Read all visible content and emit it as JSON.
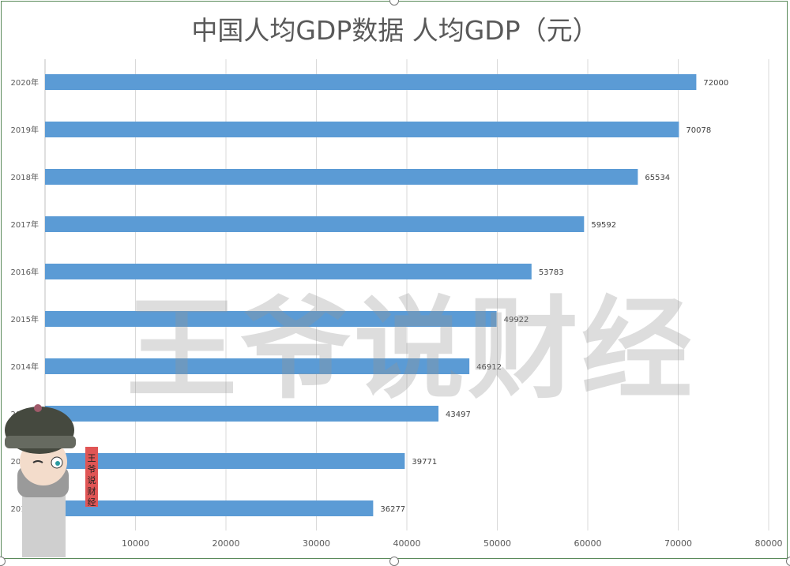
{
  "chart_data": {
    "type": "bar",
    "orientation": "horizontal",
    "title": "中国人均GDP数据 人均GDP（元）",
    "categories": [
      "2020年",
      "2019年",
      "2018年",
      "2017年",
      "2016年",
      "2015年",
      "2014年",
      "2013年",
      "2012年",
      "2011年"
    ],
    "values": [
      72000,
      70078,
      65534,
      59592,
      53783,
      49922,
      46912,
      43497,
      39771,
      36277
    ],
    "xlim": [
      0,
      80000
    ],
    "xticks": [
      "10000",
      "20000",
      "30000",
      "40000",
      "50000",
      "60000",
      "70000",
      "80000"
    ],
    "xtick_values": [
      10000,
      20000,
      30000,
      40000,
      50000,
      60000,
      70000,
      80000
    ],
    "grid": "vertical",
    "bar_color": "#5b9bd5",
    "data_labels": true
  },
  "watermark": "王爷说财经",
  "stamp": "王爷说财经"
}
